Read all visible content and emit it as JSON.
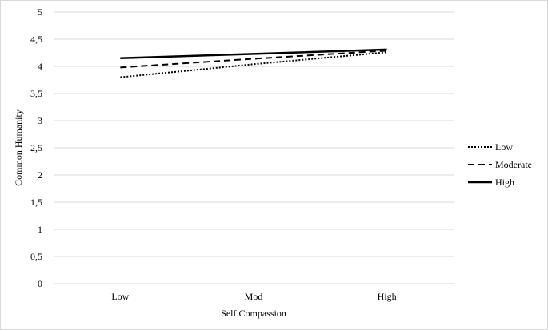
{
  "chart_data": {
    "type": "line",
    "title": "",
    "xlabel": "Self Compassion",
    "ylabel": "Common Humanity",
    "categories": [
      "Low",
      "Mod",
      "High"
    ],
    "ylim": [
      0,
      5
    ],
    "yticks": [
      0,
      0.5,
      1,
      1.5,
      2,
      2.5,
      3,
      3.5,
      4,
      4.5,
      5
    ],
    "ytick_labels": [
      "0",
      "0,5",
      "1",
      "1,5",
      "2",
      "2,5",
      "3",
      "3,5",
      "4",
      "4,5",
      "5"
    ],
    "grid": true,
    "legend_position": "right",
    "series": [
      {
        "name": "Low",
        "values": [
          3.8,
          4.04,
          4.26
        ],
        "style": "dotted",
        "color": "#000000"
      },
      {
        "name": "Moderate",
        "values": [
          3.98,
          4.14,
          4.29
        ],
        "style": "dashed",
        "color": "#000000"
      },
      {
        "name": "High",
        "values": [
          4.15,
          4.23,
          4.31
        ],
        "style": "solid",
        "color": "#000000"
      }
    ]
  }
}
